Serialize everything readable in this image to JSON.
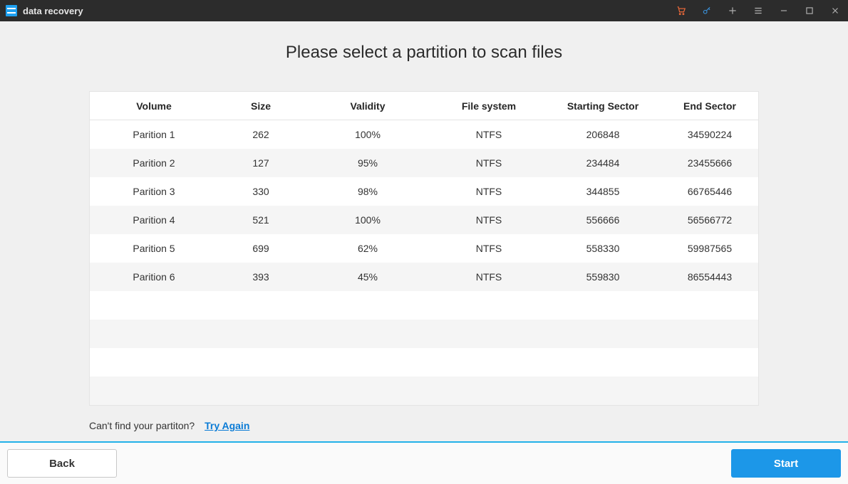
{
  "app": {
    "title": "data recovery"
  },
  "heading": "Please select a partition to scan files",
  "columns": {
    "volume": "Volume",
    "size": "Size",
    "validity": "Validity",
    "filesystem": "File system",
    "start_sector": "Starting Sector",
    "end_sector": "End Sector"
  },
  "rows": [
    {
      "volume": "Parition 1",
      "size": "262",
      "validity": "100%",
      "fs": "NTFS",
      "start": "206848",
      "end": "34590224"
    },
    {
      "volume": "Parition 2",
      "size": "127",
      "validity": "95%",
      "fs": "NTFS",
      "start": "234484",
      "end": "23455666"
    },
    {
      "volume": "Parition 3",
      "size": "330",
      "validity": "98%",
      "fs": "NTFS",
      "start": "344855",
      "end": "66765446"
    },
    {
      "volume": "Parition 4",
      "size": "521",
      "validity": "100%",
      "fs": "NTFS",
      "start": "556666",
      "end": "56566772"
    },
    {
      "volume": "Parition 5",
      "size": "699",
      "validity": "62%",
      "fs": "NTFS",
      "start": "558330",
      "end": "59987565"
    },
    {
      "volume": "Parition 6",
      "size": "393",
      "validity": "45%",
      "fs": "NTFS",
      "start": "559830",
      "end": "86554443"
    }
  ],
  "hint": {
    "text": "Can't find your partiton?",
    "link": "Try Again"
  },
  "footer": {
    "back": "Back",
    "start": "Start"
  },
  "colors": {
    "accent": "#1c97e8",
    "titlebar_bg": "#2c2c2c",
    "page_bg": "#f0f0f0",
    "stripe_bg": "#f5f5f5",
    "cart_icon": "#ef6a3a",
    "key_icon": "#3a8fd6"
  }
}
